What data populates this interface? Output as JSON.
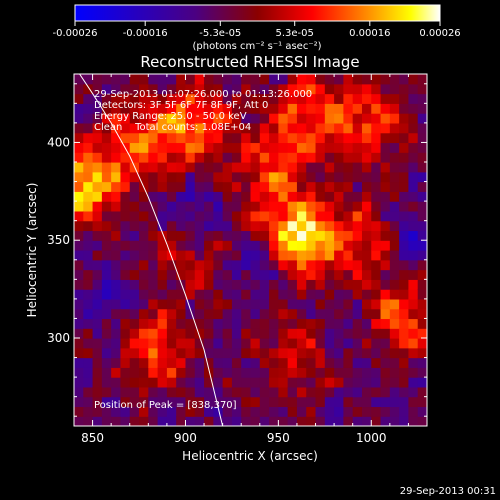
{
  "colorbar": {
    "ticks": [
      "-0.00026",
      "-0.00016",
      "-5.3e-05",
      "5.3e-05",
      "0.00016",
      "0.00026"
    ],
    "tick_values": [
      -0.00026,
      -0.00016,
      -5.3e-05,
      5.3e-05,
      0.00016,
      0.00026
    ],
    "range": [
      -0.00026,
      0.00026
    ],
    "unit_label": "(photons cm⁻² s⁻¹ asec⁻²)",
    "colors": [
      "#0000ff",
      "#4b0082",
      "#8b0000",
      "#ff0000",
      "#ff8c00",
      "#ffff00",
      "#ffffff"
    ]
  },
  "chart_data": {
    "type": "heatmap",
    "title": "Reconstructed RHESSI Image",
    "xlabel": "Heliocentric X (arcsec)",
    "ylabel": "Heliocentric Y (arcsec)",
    "xlim": [
      840,
      1030
    ],
    "ylim": [
      255,
      435
    ],
    "x_ticks": [
      850,
      900,
      950,
      1000
    ],
    "y_ticks": [
      300,
      350,
      400
    ],
    "x_tick_labels": [
      "850",
      "900",
      "950",
      "1000"
    ],
    "y_tick_labels": [
      "300",
      "350",
      "400"
    ],
    "annotations": [
      "29-Sep-2013 01:07:26.000 to 01:13:26.000",
      "Detectors: 3F 5F 6F 7F 8F 9F, Att 0",
      "Energy Range: 25.0 - 50.0 keV",
      "Clean    Total counts: 1.08E+04"
    ],
    "peak_label": "Position of Peak = [838,370]",
    "limb_curve": [
      [
        843,
        435
      ],
      [
        850,
        425
      ],
      [
        860,
        410
      ],
      [
        870,
        393
      ],
      [
        880,
        372
      ],
      [
        890,
        348
      ],
      [
        900,
        322
      ],
      [
        910,
        294
      ],
      [
        920,
        255
      ]
    ],
    "image_grid_step": 5,
    "image_sources": [
      {
        "x": 845,
        "y": 378,
        "intensity": 0.9
      },
      {
        "x": 875,
        "y": 400,
        "intensity": 0.6
      },
      {
        "x": 905,
        "y": 410,
        "intensity": 0.7
      },
      {
        "x": 965,
        "y": 415,
        "intensity": 0.6
      },
      {
        "x": 1000,
        "y": 410,
        "intensity": 0.6
      },
      {
        "x": 960,
        "y": 352,
        "intensity": 1.0
      },
      {
        "x": 995,
        "y": 350,
        "intensity": 0.5
      },
      {
        "x": 945,
        "y": 385,
        "intensity": 0.5
      },
      {
        "x": 1015,
        "y": 310,
        "intensity": 0.6
      },
      {
        "x": 885,
        "y": 295,
        "intensity": 0.6
      },
      {
        "x": 960,
        "y": 290,
        "intensity": 0.4
      },
      {
        "x": 900,
        "y": 340,
        "intensity": 0.3
      }
    ],
    "image_holes": [
      {
        "x": 940,
        "y": 340,
        "depth": 0.6
      },
      {
        "x": 905,
        "y": 365,
        "depth": 0.5
      },
      {
        "x": 1020,
        "y": 350,
        "depth": 0.6
      },
      {
        "x": 860,
        "y": 320,
        "depth": 0.4
      },
      {
        "x": 990,
        "y": 305,
        "depth": 0.3
      }
    ]
  },
  "footer": {
    "timestamp": "29-Sep-2013 00:31"
  }
}
